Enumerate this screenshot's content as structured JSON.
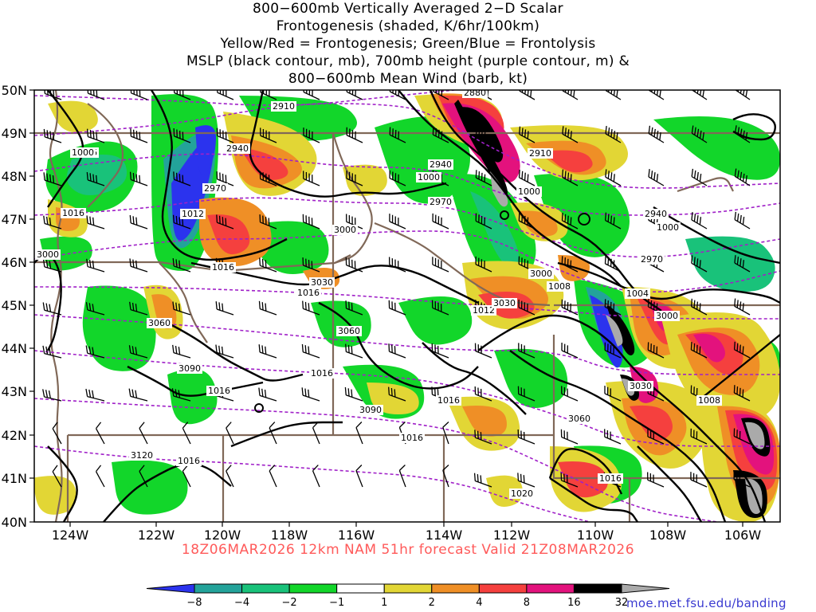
{
  "title_lines": [
    "800−600mb Vertically Averaged 2−D Scalar",
    "Frontogenesis (shaded, K/6hr/100km)",
    "Yellow/Red = Frontogenesis;  Green/Blue = Frontolysis",
    "MSLP (black contour, mb), 700mb height (purple contour, m) &",
    "800−600mb Mean Wind (barb, kt)"
  ],
  "valid_line": "18Z06MAR2026 12km NAM 51hr forecast Valid 21Z08MAR2026",
  "credit": "moe.met.fsu.edu/banding",
  "lat_labels": [
    "50N",
    "49N",
    "48N",
    "47N",
    "46N",
    "45N",
    "44N",
    "43N",
    "42N",
    "41N",
    "40N"
  ],
  "lon_labels": [
    "124W",
    "122W",
    "120W",
    "118W",
    "116W",
    "114W",
    "112W",
    "110W",
    "108W",
    "106W"
  ],
  "colorbar": {
    "labels": [
      "−8",
      "−4",
      "−2",
      "−1",
      "1",
      "2",
      "4",
      "8",
      "16",
      "32"
    ],
    "colors": [
      "#2b33ee",
      "#23a39a",
      "#19c27a",
      "#12d62a",
      "#ffffff",
      "#e2d635",
      "#ef8f26",
      "#f5403e",
      "#e3127d",
      "#000000",
      "#aaaaaa"
    ]
  },
  "mslp_labels": [
    {
      "text": "1016"
    },
    {
      "text": "1012"
    },
    {
      "text": "1016"
    },
    {
      "text": "1000"
    },
    {
      "text": "1016"
    },
    {
      "text": "1016"
    },
    {
      "text": "1016"
    },
    {
      "text": "1016"
    },
    {
      "text": "1012"
    },
    {
      "text": "1008"
    },
    {
      "text": "1000"
    },
    {
      "text": "1000"
    },
    {
      "text": "1004"
    },
    {
      "text": "1008"
    },
    {
      "text": "1016"
    },
    {
      "text": "1020"
    },
    {
      "text": "1016"
    },
    {
      "text": "1016"
    },
    {
      "text": "1016"
    },
    {
      "text": "1000"
    },
    {
      "text": "1000"
    }
  ],
  "height_labels": [
    {
      "text": "2910"
    },
    {
      "text": "2940"
    },
    {
      "text": "2970"
    },
    {
      "text": "3000"
    },
    {
      "text": "3030"
    },
    {
      "text": "3060"
    },
    {
      "text": "3090"
    },
    {
      "text": "3120"
    },
    {
      "text": "2880"
    },
    {
      "text": "2940"
    },
    {
      "text": "2970"
    },
    {
      "text": "2910"
    },
    {
      "text": "2940"
    },
    {
      "text": "2970"
    },
    {
      "text": "3000"
    },
    {
      "text": "3000"
    },
    {
      "text": "3030"
    },
    {
      "text": "3060"
    },
    {
      "text": "3030"
    },
    {
      "text": "3060"
    },
    {
      "text": "3090"
    },
    {
      "text": "3000"
    }
  ]
}
